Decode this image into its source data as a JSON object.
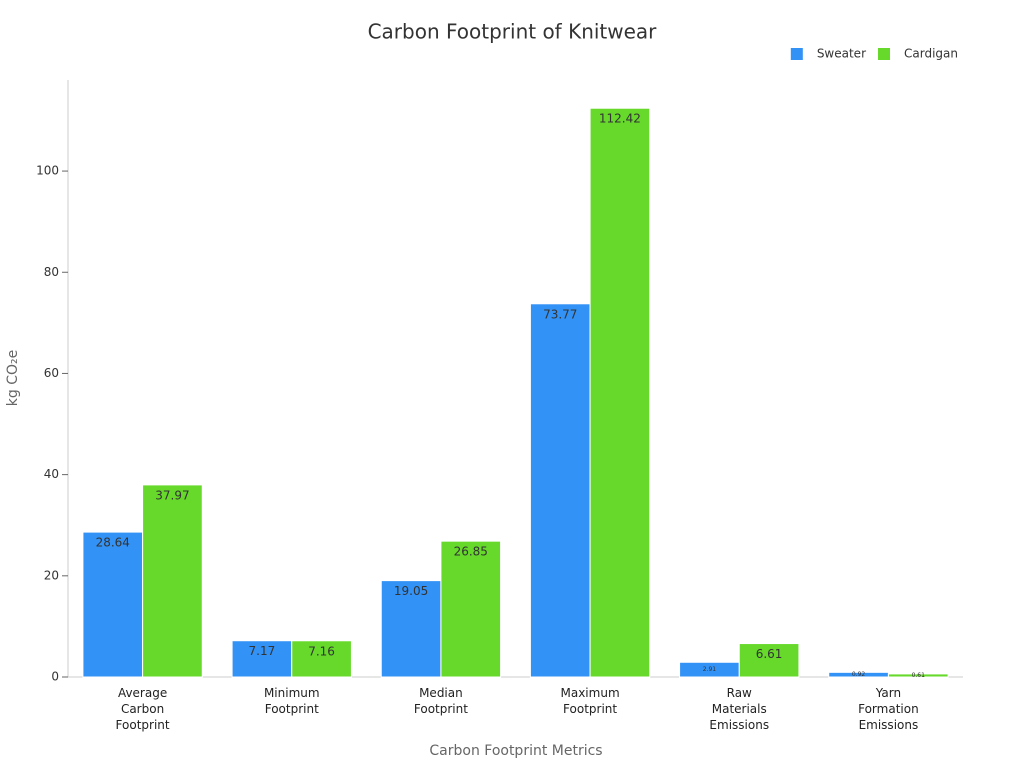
{
  "chart_data": {
    "type": "bar",
    "title": "Carbon Footprint of Knitwear",
    "x_label": "Carbon Footprint Metrics",
    "y_label": "kg CO₂e",
    "categories": [
      "Average Carbon Footprint",
      "Minimum Footprint",
      "Median Footprint",
      "Maximum Footprint",
      "Raw Materials Emissions",
      "Yarn Formation Emissions"
    ],
    "series": [
      {
        "name": "Sweater",
        "color": "#3392f5",
        "values": [
          28.64,
          7.17,
          19.05,
          73.77,
          2.91,
          0.92
        ]
      },
      {
        "name": "Cardigan",
        "color": "#66d92a",
        "values": [
          37.97,
          7.16,
          26.85,
          112.42,
          6.61,
          0.61
        ]
      }
    ],
    "ylim": [
      0,
      118
    ],
    "yticks": [
      0,
      20,
      40,
      60,
      80,
      100
    ],
    "grid": false,
    "legend": "top-right"
  }
}
